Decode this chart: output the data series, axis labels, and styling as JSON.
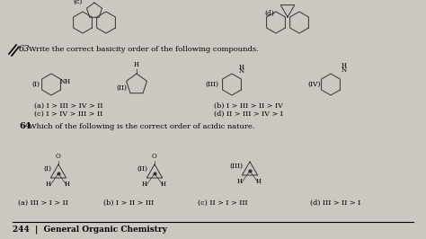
{
  "bg_color": "#cbc8c2",
  "title_q63": "Write the correct basicity order of the following compounds.",
  "title_q64": "Which of the following is the correct order of acidic nature.",
  "q63_num": "63",
  "q64_num": "64",
  "q63_options_left": [
    "(a) I > III > IV > II",
    "(c) I > IV > III > II"
  ],
  "q63_options_right": [
    "(b) I > III > II > IV",
    "(d) II > III > IV > I"
  ],
  "q64_options": [
    "(a) III > I > II",
    "(b) I > II > III",
    "(c) II > I > III",
    "(d) III > II > I"
  ],
  "footer": "244  |  General Organic Chemistry",
  "label_c": "(c)",
  "label_d": "(d)"
}
